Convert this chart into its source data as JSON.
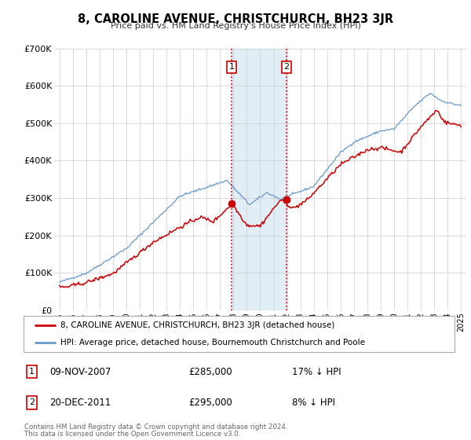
{
  "title": "8, CAROLINE AVENUE, CHRISTCHURCH, BH23 3JR",
  "subtitle": "Price paid vs. HM Land Registry's House Price Index (HPI)",
  "ylim": [
    0,
    700000
  ],
  "yticks": [
    0,
    100000,
    200000,
    300000,
    400000,
    500000,
    600000,
    700000
  ],
  "ytick_labels": [
    "£0",
    "£100K",
    "£200K",
    "£300K",
    "£400K",
    "£500K",
    "£600K",
    "£700K"
  ],
  "xlim_start": 1994.6,
  "xlim_end": 2025.4,
  "xticks": [
    1995,
    1996,
    1997,
    1998,
    1999,
    2000,
    2001,
    2002,
    2003,
    2004,
    2005,
    2006,
    2007,
    2008,
    2009,
    2010,
    2011,
    2012,
    2013,
    2014,
    2015,
    2016,
    2017,
    2018,
    2019,
    2020,
    2021,
    2022,
    2023,
    2024,
    2025
  ],
  "red_line_color": "#cc0000",
  "blue_line_color": "#6699cc",
  "marker_color": "#cc0000",
  "vline_color": "#cc0000",
  "shade_color": "#d0e4f0",
  "grid_color": "#cccccc",
  "background_color": "#ffffff",
  "sale1_x": 2007.86,
  "sale1_y": 285000,
  "sale1_label": "1",
  "sale1_date": "09-NOV-2007",
  "sale1_price": "£285,000",
  "sale1_hpi": "17% ↓ HPI",
  "sale2_x": 2011.97,
  "sale2_y": 295000,
  "sale2_label": "2",
  "sale2_date": "20-DEC-2011",
  "sale2_price": "£295,000",
  "sale2_hpi": "8% ↓ HPI",
  "legend_line1": "8, CAROLINE AVENUE, CHRISTCHURCH, BH23 3JR (detached house)",
  "legend_line2": "HPI: Average price, detached house, Bournemouth Christchurch and Poole",
  "footer1": "Contains HM Land Registry data © Crown copyright and database right 2024.",
  "footer2": "This data is licensed under the Open Government Licence v3.0."
}
